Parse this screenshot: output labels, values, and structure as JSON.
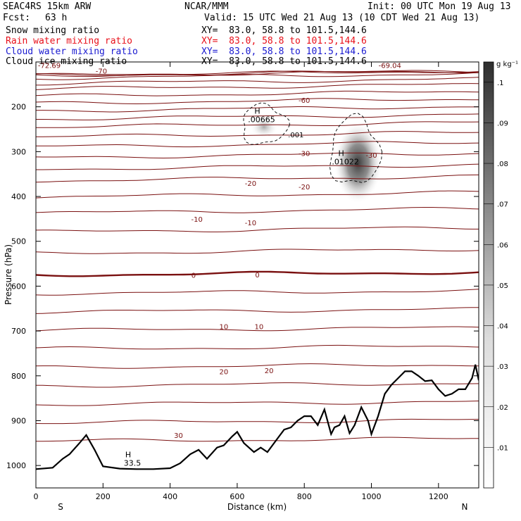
{
  "header": {
    "model": "SEAC4RS 15km ARW",
    "org": "NCAR/MMM",
    "init": "Init: 00 UTC Mon 19 Aug 13",
    "fcst_label": "Fcst:",
    "fcst_value": "63 h",
    "valid": "Valid: 15 UTC Wed 21 Aug 13 (10 CDT Wed 21 Aug 13)"
  },
  "fields": [
    {
      "name": "Snow mixing ratio",
      "xy": "XY=  83.0, 58.8 to 101.5,144.6",
      "color": "#000000"
    },
    {
      "name": "Rain water mixing ratio",
      "xy": "XY=  83.0, 58.8 to 101.5,144.6",
      "color": "#e8101a"
    },
    {
      "name": "Cloud water mixing ratio",
      "xy": "XY=  83.0, 58.8 to 101.5,144.6",
      "color": "#1a1ad0"
    },
    {
      "name": "Cloud ice mixing ratio",
      "xy": "XY=  83.0, 58.8 to 101.5,144.6",
      "color": "#000000"
    }
  ],
  "chart_data": {
    "type": "contour-cross-section",
    "xlabel": "Distance (km)",
    "ylabel": "Pressure (hPa)",
    "xlim": [
      0,
      1320
    ],
    "ylim": [
      1050,
      100
    ],
    "x_ticks": [
      0,
      200,
      400,
      600,
      800,
      1000,
      1200
    ],
    "y_ticks": [
      200,
      300,
      400,
      500,
      600,
      700,
      800,
      900,
      1000
    ],
    "end_labels": {
      "left": "S",
      "right": "N"
    },
    "colorbar": {
      "units": "g kg⁻¹",
      "levels": [
        ".01",
        ".02",
        ".03",
        ".04",
        ".05",
        ".06",
        ".07",
        ".08",
        ".09",
        ".1"
      ]
    },
    "temperature_contour_labels": [
      {
        "text": "-72.69",
        "x": 40,
        "p": 107
      },
      {
        "text": "-70",
        "x": 195,
        "p": 120
      },
      {
        "text": "-69.04",
        "x": 1055,
        "p": 107
      },
      {
        "text": "-60",
        "x": 800,
        "p": 185
      },
      {
        "text": "-30",
        "x": 800,
        "p": 303
      },
      {
        "text": "-30",
        "x": 1000,
        "p": 307
      },
      {
        "text": "-20",
        "x": 640,
        "p": 370
      },
      {
        "text": "-20",
        "x": 800,
        "p": 378
      },
      {
        "text": "-10",
        "x": 480,
        "p": 450
      },
      {
        "text": "-10",
        "x": 640,
        "p": 458
      },
      {
        "text": "0",
        "x": 470,
        "p": 575
      },
      {
        "text": "0",
        "x": 660,
        "p": 574
      },
      {
        "text": "10",
        "x": 560,
        "p": 690
      },
      {
        "text": "10",
        "x": 665,
        "p": 690
      },
      {
        "text": "20",
        "x": 560,
        "p": 790
      },
      {
        "text": "20",
        "x": 695,
        "p": 788
      },
      {
        "text": "30",
        "x": 425,
        "p": 932
      }
    ],
    "highs": [
      {
        "label": "H",
        "value": ".00665",
        "x": 660,
        "p": 222
      },
      {
        "label": "H",
        "value": ".01022",
        "x": 910,
        "p": 316
      },
      {
        "label": "H",
        "value": "33.5",
        "x": 275,
        "p": 988
      }
    ],
    "ice_contour_label": {
      "text": ".001",
      "x": 775,
      "p": 262
    },
    "isotherms_c": [
      -70,
      -60,
      -50,
      -40,
      -30,
      -20,
      -10,
      0,
      10,
      20,
      30
    ]
  }
}
